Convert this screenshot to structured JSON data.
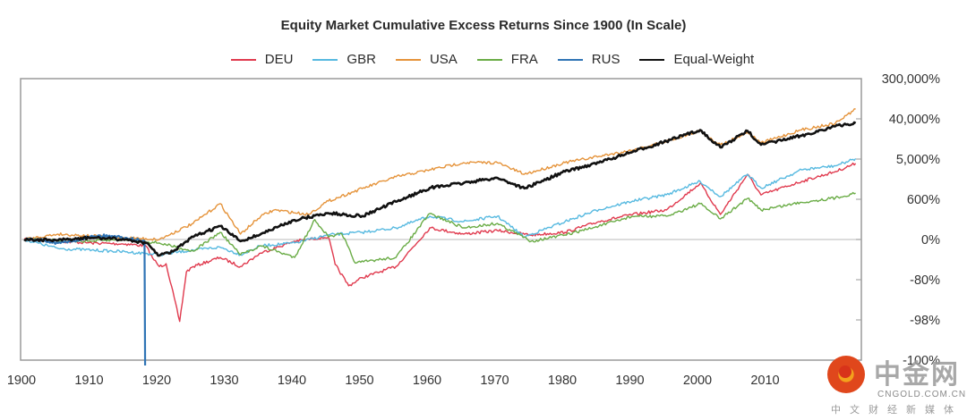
{
  "chart_data": {
    "type": "line",
    "title": "Equity Market Cumulative Excess Returns Since 1900 (In Scale)",
    "xlabel": "",
    "ylabel": "",
    "y_scale": "log(1+r)",
    "xlim": [
      1900,
      2024
    ],
    "x_ticks": [
      "1900",
      "1910",
      "1920",
      "1930",
      "1940",
      "1950",
      "1960",
      "1970",
      "1980",
      "1990",
      "2000",
      "2010"
    ],
    "y_ticks": [
      {
        "label": "300,000%",
        "value": 300000
      },
      {
        "label": "40,000%",
        "value": 40000
      },
      {
        "label": "5,000%",
        "value": 5000
      },
      {
        "label": "600%",
        "value": 600
      },
      {
        "label": "0%",
        "value": 0
      },
      {
        "label": "-80%",
        "value": -80
      },
      {
        "label": "-98%",
        "value": -98
      },
      {
        "label": "-100%",
        "value": -100
      }
    ],
    "zero_line": true,
    "grid": false,
    "legend_position": "top-center",
    "series": [
      {
        "name": "DEU",
        "color": "#e03a4e",
        "x": [
          1900,
          1905,
          1910,
          1915,
          1918,
          1919,
          1920,
          1921,
          1923,
          1924,
          1925,
          1929,
          1932,
          1935,
          1940,
          1945,
          1946,
          1948,
          1950,
          1955,
          1960,
          1965,
          1970,
          1975,
          1980,
          1985,
          1990,
          1995,
          2000,
          2003,
          2007,
          2009,
          2015,
          2020,
          2023
        ],
        "values": [
          0,
          -8,
          -16,
          -20,
          -27,
          -60,
          -74,
          -70,
          -98.3,
          -80,
          -74,
          -59,
          -74,
          -49,
          -8,
          14,
          -71,
          -90,
          -85,
          -74,
          78,
          31,
          56,
          25,
          43,
          143,
          247,
          334,
          1540,
          247,
          2460,
          816,
          1700,
          2830,
          4300
        ]
      },
      {
        "name": "GBR",
        "color": "#56b9e0",
        "x": [
          1900,
          1905,
          1910,
          1915,
          1920,
          1925,
          1929,
          1932,
          1935,
          1940,
          1945,
          1950,
          1955,
          1960,
          1965,
          1970,
          1974,
          1980,
          1985,
          1990,
          1995,
          2000,
          2003,
          2007,
          2009,
          2015,
          2020,
          2023
        ],
        "values": [
          0,
          -36,
          -41,
          -46,
          -53,
          -41,
          -32,
          -53,
          -27,
          -16,
          25,
          43,
          78,
          218,
          143,
          218,
          14,
          143,
          344,
          577,
          825,
          1700,
          745,
          2460,
          1200,
          3100,
          3800,
          5500
        ]
      },
      {
        "name": "USA",
        "color": "#e5933a",
        "x": [
          1900,
          1905,
          1910,
          1915,
          1920,
          1925,
          1929,
          1932,
          1935,
          1937,
          1942,
          1945,
          1950,
          1955,
          1960,
          1965,
          1970,
          1974,
          1980,
          1985,
          1990,
          1995,
          2000,
          2003,
          2007,
          2009,
          2015,
          2020,
          2023
        ],
        "values": [
          0,
          31,
          19,
          9,
          0,
          123,
          495,
          31,
          218,
          335,
          247,
          577,
          1160,
          2150,
          3100,
          4470,
          4470,
          2460,
          4470,
          6150,
          8400,
          13200,
          22000,
          10900,
          20600,
          12100,
          23300,
          32300,
          65800
        ]
      },
      {
        "name": "FRA",
        "color": "#6aac46",
        "x": [
          1900,
          1910,
          1915,
          1920,
          1925,
          1929,
          1932,
          1935,
          1940,
          1943,
          1945,
          1947,
          1949,
          1952,
          1955,
          1960,
          1965,
          1970,
          1975,
          1980,
          1985,
          1990,
          1995,
          2000,
          2003,
          2007,
          2009,
          2015,
          2020,
          2023
        ],
        "values": [
          0,
          -8,
          0,
          -16,
          -44,
          43,
          -53,
          -27,
          -59,
          168,
          14,
          31,
          -69,
          -64,
          -59,
          263,
          78,
          123,
          -8,
          25,
          95,
          218,
          218,
          492,
          178,
          670,
          335,
          535,
          692,
          900
        ]
      },
      {
        "name": "RUS",
        "color": "#2f74b5",
        "x": [
          1900,
          1903,
          1905,
          1907,
          1910,
          1913,
          1915,
          1917,
          1917.8,
          1917.9
        ],
        "values": [
          0,
          -4,
          -16,
          -10,
          20,
          19,
          9,
          -4,
          -8,
          -100
        ]
      },
      {
        "name": "Equal-Weight",
        "color": "#111111",
        "x": [
          1900,
          1905,
          1910,
          1915,
          1918,
          1920,
          1922,
          1925,
          1929,
          1932,
          1935,
          1940,
          1945,
          1950,
          1955,
          1960,
          1965,
          1970,
          1974,
          1980,
          1985,
          1990,
          1995,
          2000,
          2003,
          2007,
          2009,
          2015,
          2020,
          2023
        ],
        "values": [
          0,
          -4,
          9,
          0,
          -16,
          -55,
          -45,
          14,
          95,
          -8,
          31,
          164,
          270,
          220,
          555,
          1200,
          1560,
          2050,
          1170,
          2830,
          4470,
          7700,
          13200,
          23000,
          9650,
          22000,
          11000,
          17300,
          27800,
          32300
        ]
      }
    ]
  },
  "watermark": {
    "name": "中金网",
    "domain": "CNGOLD.COM.CN",
    "slogan": "中文财经新媒体"
  }
}
